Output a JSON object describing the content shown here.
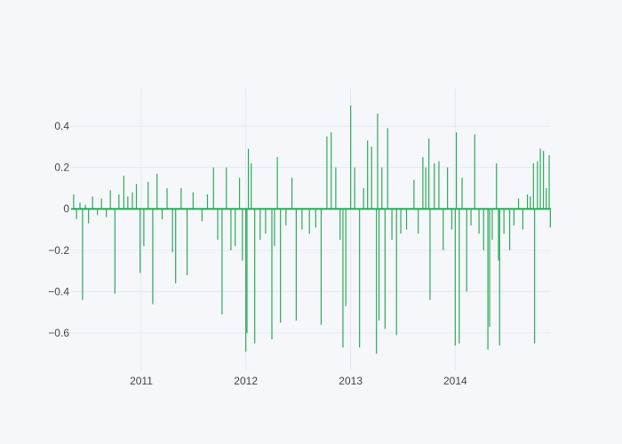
{
  "chart_data": {
    "type": "bar",
    "title": "",
    "xlabel": "",
    "ylabel": "",
    "xlim": [
      "2010-05-01",
      "2014-12-01"
    ],
    "ylim": [
      -0.78,
      0.58
    ],
    "grid": true,
    "bar_color": "#2eaa5a",
    "x_ticks": [
      {
        "label": "2011",
        "date": "2011-01-01"
      },
      {
        "label": "2012",
        "date": "2012-01-01"
      },
      {
        "label": "2013",
        "date": "2013-01-01"
      },
      {
        "label": "2014",
        "date": "2014-01-01"
      }
    ],
    "y_ticks": [
      {
        "label": "0.4",
        "value": 0.4
      },
      {
        "label": "0.2",
        "value": 0.2
      },
      {
        "label": "0",
        "value": 0
      },
      {
        "label": "−0.2",
        "value": -0.2
      },
      {
        "label": "−0.4",
        "value": -0.4
      },
      {
        "label": "−0.6",
        "value": -0.6
      }
    ],
    "points": [
      {
        "x": "2010-05-10",
        "y": 0.07
      },
      {
        "x": "2010-05-20",
        "y": -0.05
      },
      {
        "x": "2010-06-01",
        "y": 0.03
      },
      {
        "x": "2010-06-10",
        "y": -0.44
      },
      {
        "x": "2010-06-20",
        "y": 0.02
      },
      {
        "x": "2010-07-01",
        "y": -0.07
      },
      {
        "x": "2010-07-15",
        "y": 0.06
      },
      {
        "x": "2010-08-01",
        "y": -0.03
      },
      {
        "x": "2010-08-15",
        "y": 0.05
      },
      {
        "x": "2010-09-01",
        "y": -0.04
      },
      {
        "x": "2010-09-15",
        "y": 0.09
      },
      {
        "x": "2010-10-01",
        "y": -0.41
      },
      {
        "x": "2010-10-15",
        "y": 0.07
      },
      {
        "x": "2010-11-01",
        "y": 0.16
      },
      {
        "x": "2010-11-15",
        "y": 0.06
      },
      {
        "x": "2010-12-01",
        "y": 0.08
      },
      {
        "x": "2010-12-15",
        "y": 0.12
      },
      {
        "x": "2010-12-28",
        "y": -0.31
      },
      {
        "x": "2011-01-10",
        "y": -0.18
      },
      {
        "x": "2011-01-25",
        "y": 0.13
      },
      {
        "x": "2011-02-10",
        "y": -0.46
      },
      {
        "x": "2011-02-25",
        "y": 0.17
      },
      {
        "x": "2011-03-15",
        "y": -0.05
      },
      {
        "x": "2011-04-01",
        "y": 0.1
      },
      {
        "x": "2011-04-20",
        "y": -0.21
      },
      {
        "x": "2011-05-01",
        "y": -0.36
      },
      {
        "x": "2011-05-20",
        "y": 0.1
      },
      {
        "x": "2011-06-10",
        "y": -0.32
      },
      {
        "x": "2011-07-01",
        "y": 0.08
      },
      {
        "x": "2011-08-01",
        "y": -0.06
      },
      {
        "x": "2011-08-20",
        "y": 0.07
      },
      {
        "x": "2011-09-10",
        "y": 0.2
      },
      {
        "x": "2011-09-25",
        "y": -0.15
      },
      {
        "x": "2011-10-10",
        "y": -0.51
      },
      {
        "x": "2011-10-25",
        "y": 0.2
      },
      {
        "x": "2011-11-10",
        "y": -0.2
      },
      {
        "x": "2011-11-25",
        "y": -0.18
      },
      {
        "x": "2011-12-10",
        "y": 0.15
      },
      {
        "x": "2011-12-20",
        "y": -0.25
      },
      {
        "x": "2012-01-01",
        "y": -0.69
      },
      {
        "x": "2012-01-05",
        "y": -0.6
      },
      {
        "x": "2012-01-10",
        "y": 0.29
      },
      {
        "x": "2012-01-20",
        "y": 0.22
      },
      {
        "x": "2012-02-01",
        "y": -0.65
      },
      {
        "x": "2012-02-20",
        "y": -0.15
      },
      {
        "x": "2012-03-10",
        "y": -0.12
      },
      {
        "x": "2012-04-01",
        "y": -0.63
      },
      {
        "x": "2012-04-10",
        "y": -0.18
      },
      {
        "x": "2012-04-20",
        "y": 0.25
      },
      {
        "x": "2012-05-01",
        "y": -0.55
      },
      {
        "x": "2012-05-20",
        "y": -0.08
      },
      {
        "x": "2012-06-10",
        "y": 0.15
      },
      {
        "x": "2012-06-25",
        "y": -0.54
      },
      {
        "x": "2012-07-15",
        "y": -0.1
      },
      {
        "x": "2012-08-10",
        "y": -0.12
      },
      {
        "x": "2012-09-01",
        "y": -0.09
      },
      {
        "x": "2012-09-20",
        "y": -0.56
      },
      {
        "x": "2012-10-10",
        "y": 0.35
      },
      {
        "x": "2012-10-25",
        "y": 0.37
      },
      {
        "x": "2012-11-10",
        "y": 0.2
      },
      {
        "x": "2012-11-25",
        "y": -0.15
      },
      {
        "x": "2012-12-05",
        "y": -0.67
      },
      {
        "x": "2012-12-15",
        "y": -0.47
      },
      {
        "x": "2013-01-01",
        "y": 0.5
      },
      {
        "x": "2013-01-15",
        "y": 0.2
      },
      {
        "x": "2013-02-01",
        "y": -0.67
      },
      {
        "x": "2013-02-15",
        "y": 0.1
      },
      {
        "x": "2013-03-01",
        "y": 0.33
      },
      {
        "x": "2013-03-15",
        "y": 0.3
      },
      {
        "x": "2013-04-01",
        "y": -0.7
      },
      {
        "x": "2013-04-05",
        "y": 0.46
      },
      {
        "x": "2013-04-10",
        "y": -0.54
      },
      {
        "x": "2013-04-20",
        "y": 0.2
      },
      {
        "x": "2013-05-01",
        "y": -0.58
      },
      {
        "x": "2013-05-10",
        "y": 0.39
      },
      {
        "x": "2013-05-25",
        "y": -0.15
      },
      {
        "x": "2013-06-10",
        "y": -0.61
      },
      {
        "x": "2013-06-25",
        "y": -0.12
      },
      {
        "x": "2013-07-15",
        "y": -0.1
      },
      {
        "x": "2013-08-10",
        "y": 0.14
      },
      {
        "x": "2013-08-25",
        "y": -0.12
      },
      {
        "x": "2013-09-10",
        "y": 0.25
      },
      {
        "x": "2013-09-20",
        "y": 0.2
      },
      {
        "x": "2013-10-01",
        "y": 0.34
      },
      {
        "x": "2013-10-05",
        "y": -0.44
      },
      {
        "x": "2013-10-20",
        "y": 0.22
      },
      {
        "x": "2013-11-05",
        "y": 0.23
      },
      {
        "x": "2013-11-20",
        "y": -0.2
      },
      {
        "x": "2013-12-05",
        "y": 0.2
      },
      {
        "x": "2013-12-20",
        "y": -0.1
      },
      {
        "x": "2014-01-01",
        "y": -0.66
      },
      {
        "x": "2014-01-05",
        "y": 0.37
      },
      {
        "x": "2014-01-15",
        "y": -0.65
      },
      {
        "x": "2014-01-25",
        "y": 0.15
      },
      {
        "x": "2014-02-10",
        "y": -0.4
      },
      {
        "x": "2014-02-25",
        "y": -0.08
      },
      {
        "x": "2014-03-10",
        "y": 0.36
      },
      {
        "x": "2014-03-25",
        "y": -0.12
      },
      {
        "x": "2014-04-10",
        "y": -0.2
      },
      {
        "x": "2014-04-25",
        "y": -0.68
      },
      {
        "x": "2014-05-01",
        "y": -0.57
      },
      {
        "x": "2014-05-10",
        "y": -0.15
      },
      {
        "x": "2014-05-25",
        "y": 0.22
      },
      {
        "x": "2014-06-01",
        "y": -0.25
      },
      {
        "x": "2014-06-05",
        "y": -0.66
      },
      {
        "x": "2014-06-20",
        "y": -0.12
      },
      {
        "x": "2014-07-10",
        "y": -0.2
      },
      {
        "x": "2014-07-25",
        "y": -0.08
      },
      {
        "x": "2014-08-10",
        "y": 0.05
      },
      {
        "x": "2014-08-25",
        "y": -0.1
      },
      {
        "x": "2014-09-10",
        "y": 0.07
      },
      {
        "x": "2014-09-20",
        "y": 0.06
      },
      {
        "x": "2014-10-01",
        "y": 0.22
      },
      {
        "x": "2014-10-05",
        "y": -0.65
      },
      {
        "x": "2014-10-15",
        "y": 0.23
      },
      {
        "x": "2014-10-25",
        "y": 0.29
      },
      {
        "x": "2014-11-05",
        "y": 0.28
      },
      {
        "x": "2014-11-15",
        "y": 0.1
      },
      {
        "x": "2014-11-25",
        "y": 0.26
      },
      {
        "x": "2014-11-29",
        "y": -0.09
      }
    ]
  }
}
